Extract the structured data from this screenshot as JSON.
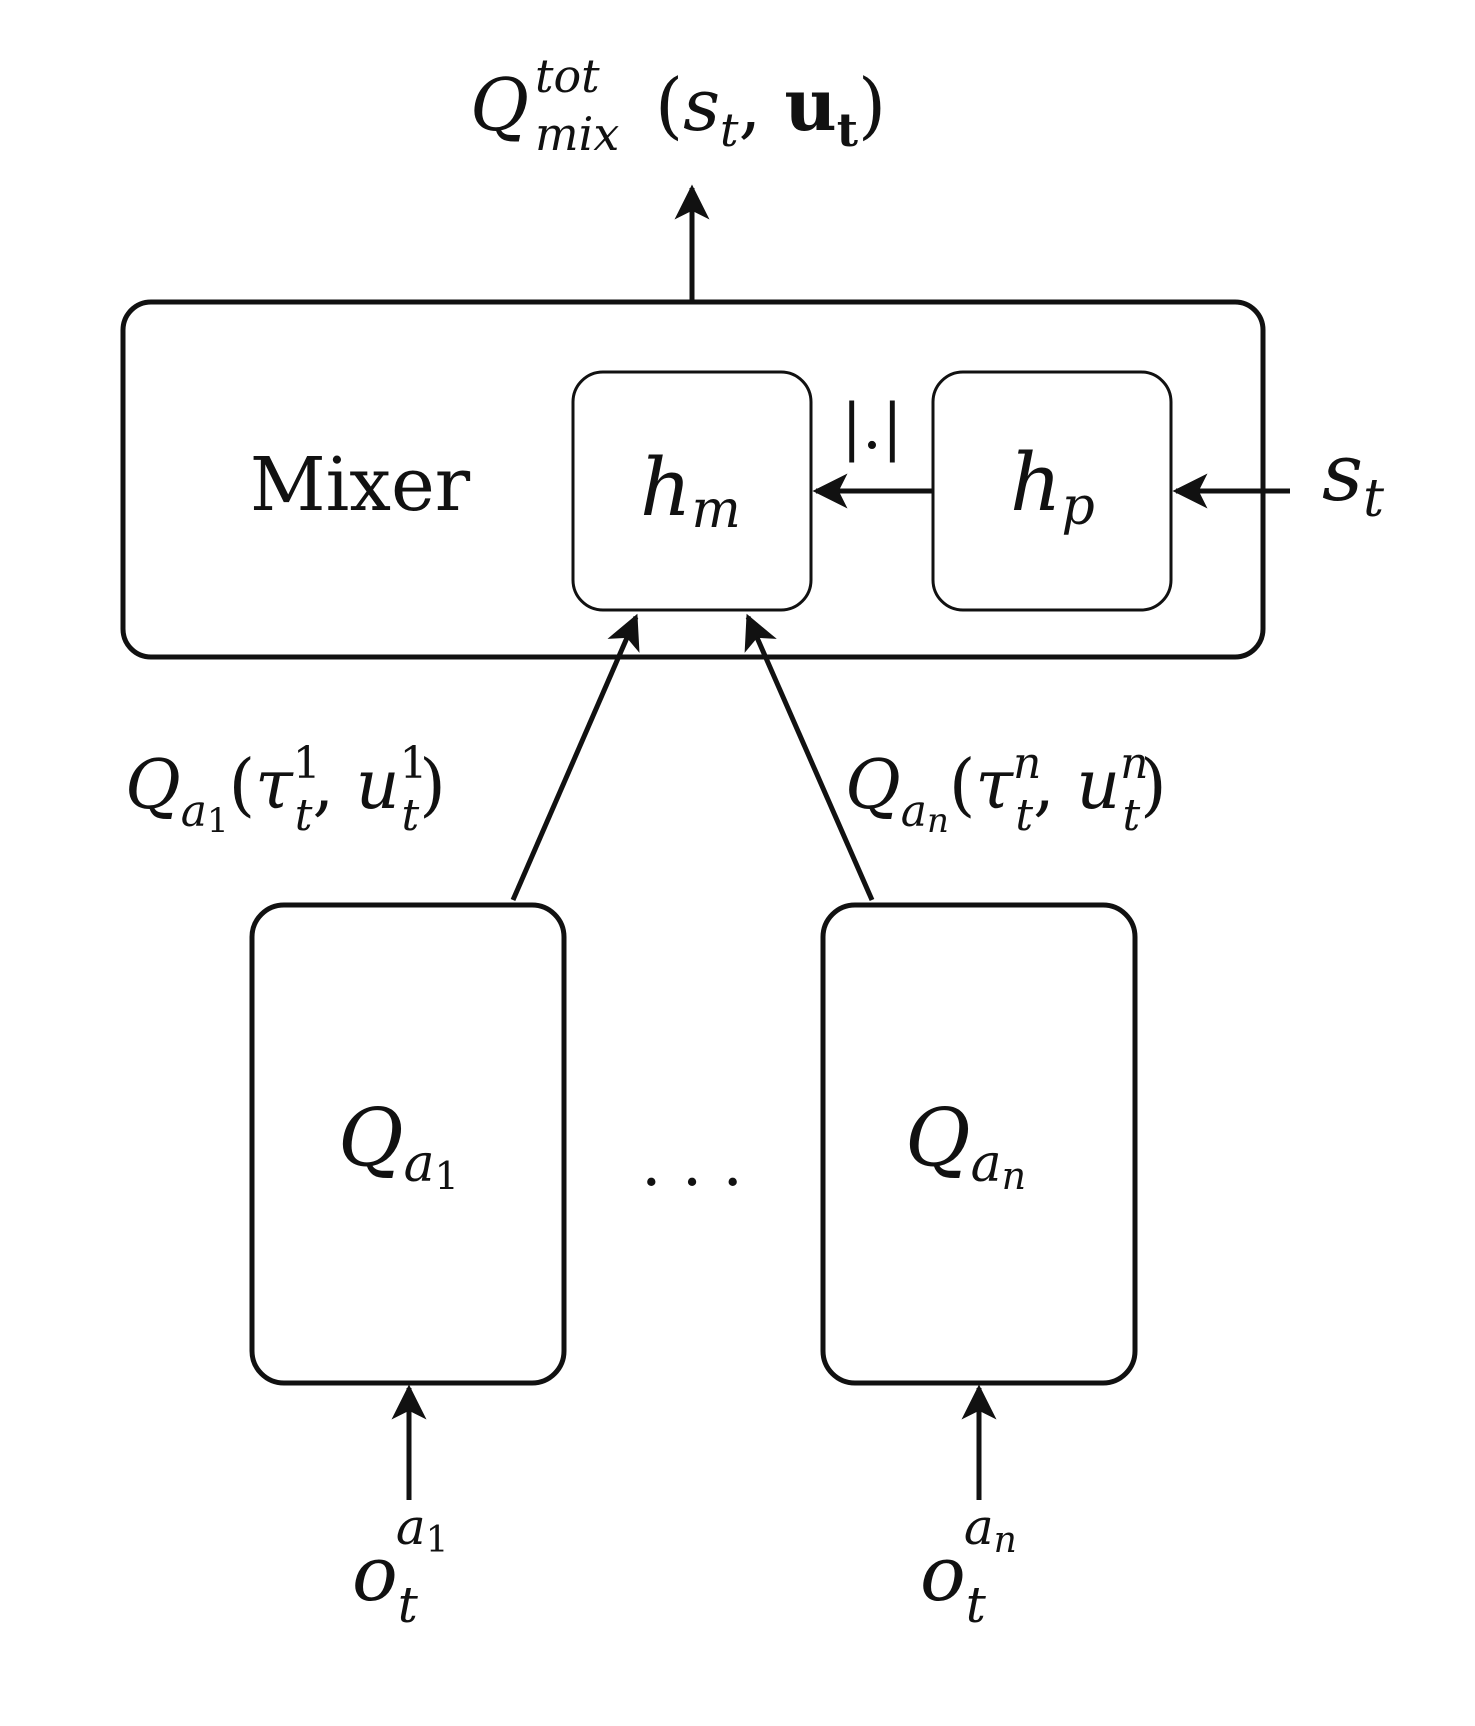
{
  "output_label": {
    "q": "Q",
    "sup": "tot",
    "sub": "mix",
    "open": "(",
    "s": "s",
    "s_sub": "t",
    "comma": ", ",
    "u": "u",
    "u_sub": "t",
    "close": ")"
  },
  "mixer": {
    "label": "Mixer",
    "hm": {
      "h": "h",
      "sub": "m"
    },
    "hp": {
      "h": "h",
      "sub": "p"
    },
    "abs_label": "|.|"
  },
  "state_input": {
    "s": "s",
    "sub": "t"
  },
  "agent_q_labels": [
    {
      "q": "Q",
      "sub_a": "a",
      "sub_idx": "1",
      "open": "(",
      "tau": "τ",
      "tau_sup": "1",
      "tau_sub": "t",
      "comma": ", ",
      "u": "u",
      "u_sup": "1",
      "u_sub": "t",
      "close": ")"
    },
    {
      "q": "Q",
      "sub_a": "a",
      "sub_idx": "n",
      "open": "(",
      "tau": "τ",
      "tau_sup": "n",
      "tau_sub": "t",
      "comma": ", ",
      "u": "u",
      "u_sup": "n",
      "u_sub": "t",
      "close": ")"
    }
  ],
  "agents": [
    {
      "q": "Q",
      "sub_a": "a",
      "sub_idx": "1"
    },
    {
      "q": "Q",
      "sub_a": "a",
      "sub_idx": "n"
    }
  ],
  "ellipsis": ". . .",
  "observations": [
    {
      "o": "o",
      "sub": "t",
      "sup_a": "a",
      "sup_idx": "1"
    },
    {
      "o": "o",
      "sub": "t",
      "sup_a": "a",
      "sup_idx": "n"
    }
  ]
}
